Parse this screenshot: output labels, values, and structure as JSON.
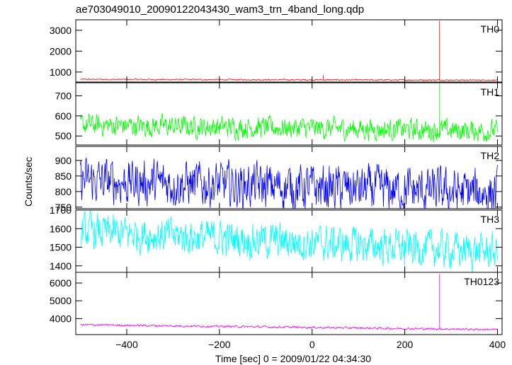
{
  "chart_data": {
    "type": "line",
    "title": "ae703049010_20090122043430_wam3_trn_4band_long.qdp",
    "xlabel": "Time [sec] 0 = 2009/01/22 04:34:30",
    "ylabel": "Counts/sec",
    "xlim": [
      -510,
      410
    ],
    "x_ticks": [
      -400,
      -200,
      0,
      200,
      400
    ],
    "x_tick_labels": [
      "−400",
      "−200",
      "0",
      "200",
      "400"
    ],
    "x_range": [
      -500,
      400
    ],
    "series": [
      {
        "name": "TH0",
        "color": "#ff0000",
        "ylim": [
          520,
          3500
        ],
        "y_ticks": [
          1000,
          2000,
          3000
        ],
        "y_tick_labels": [
          "1000",
          "2000",
          "3000"
        ],
        "baseline": [
          [
            -500,
            650
          ],
          [
            400,
            610
          ]
        ],
        "noise": 30,
        "spikes": [
          [
            24,
            850
          ],
          [
            275,
            3450
          ]
        ]
      },
      {
        "name": "TH1",
        "color": "#00ff00",
        "ylim": [
          455,
          765
        ],
        "y_ticks": [
          500,
          600,
          700
        ],
        "y_tick_labels": [
          "500",
          "600",
          "700"
        ],
        "baseline": [
          [
            -500,
            555
          ],
          [
            400,
            525
          ]
        ],
        "noise": 55,
        "spikes": [
          [
            275,
            765
          ]
        ]
      },
      {
        "name": "TH2",
        "color": "#0000ff",
        "ylim": [
          745,
          945
        ],
        "y_ticks": [
          750,
          800,
          850,
          900
        ],
        "y_tick_labels": [
          "750",
          "800",
          "850",
          "900"
        ],
        "baseline": [
          [
            -500,
            835
          ],
          [
            400,
            795
          ]
        ],
        "noise": 75,
        "spikes": []
      },
      {
        "name": "TH3",
        "color": "#00ffff",
        "ylim": [
          1365,
          1700
        ],
        "y_ticks": [
          1400,
          1500,
          1600,
          1700
        ],
        "y_tick_labels": [
          "1400",
          "1500",
          "1600",
          "1700"
        ],
        "baseline": [
          [
            -500,
            1585
          ],
          [
            400,
            1475
          ]
        ],
        "noise": 100,
        "spikes": [
          [
            200,
            1365
          ]
        ]
      },
      {
        "name": "TH0123",
        "color": "#ff00ff",
        "ylim": [
          3100,
          6600
        ],
        "y_ticks": [
          4000,
          5000,
          6000
        ],
        "y_tick_labels": [
          "4000",
          "5000",
          "6000"
        ],
        "baseline": [
          [
            -500,
            3650
          ],
          [
            400,
            3380
          ]
        ],
        "noise": 60,
        "spikes": [
          [
            275,
            6500
          ]
        ]
      }
    ]
  }
}
